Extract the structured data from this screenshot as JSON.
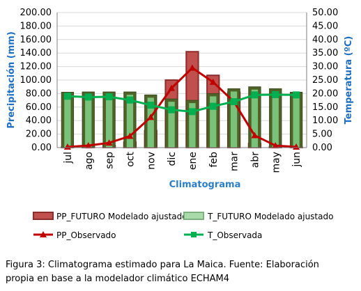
{
  "chart_data": {
    "type": "bar",
    "categories": [
      "jul",
      "ago",
      "sep",
      "oct",
      "nov",
      "dic",
      "ene",
      "feb",
      "mar",
      "abr",
      "may",
      "jun"
    ],
    "xlabel": "Climatograma",
    "ylabel": "Precipitación (mm)",
    "y2label": "Temperatura (ºC)",
    "ylim": [
      0,
      200
    ],
    "y2lim": [
      0,
      50
    ],
    "yticks": [
      "0.00",
      "20.00",
      "40.00",
      "60.00",
      "80.00",
      "100.00",
      "120.00",
      "140.00",
      "160.00",
      "180.00",
      "200.00"
    ],
    "y2ticks": [
      "0.00",
      "5.00",
      "10.00",
      "15.00",
      "20.00",
      "25.00",
      "30.00",
      "35.00",
      "40.00",
      "45.00",
      "50.00"
    ],
    "grid": true,
    "legend_position": "bottom",
    "series": [
      {
        "name": "PP_FUTURO Modelado ajustado",
        "kind": "bar",
        "axis": "left",
        "color": "#c0504d",
        "values": [
          0.5,
          1.5,
          3,
          8,
          25,
          100,
          142,
          107,
          82,
          6,
          1,
          0.5
        ]
      },
      {
        "name": "T_FUTURO Modelado ajustado",
        "kind": "bar",
        "axis": "right",
        "color": "#7ac27a",
        "values": [
          20.5,
          20.6,
          20.6,
          20.6,
          19.5,
          18.0,
          17.5,
          20.0,
          21.8,
          22.5,
          21.8,
          20.5
        ]
      },
      {
        "name": "PP_Observado",
        "kind": "line",
        "axis": "left",
        "color": "#c00000",
        "values": [
          1,
          3,
          7,
          17,
          45,
          88,
          118,
          97,
          68,
          18,
          3,
          1
        ]
      },
      {
        "name": "T_Observada",
        "kind": "line",
        "axis": "right",
        "color": "#00b050",
        "values": [
          19,
          18.7,
          18.8,
          17.6,
          15.7,
          14,
          13.3,
          15.3,
          17,
          19.5,
          19.6,
          19.5
        ]
      }
    ]
  },
  "caption": {
    "line1": "Figura 3:  Climatograma estimado para La Maica. Fuente: Elaboración",
    "line2": "propia en base a la modelador climático ECHAM4"
  }
}
